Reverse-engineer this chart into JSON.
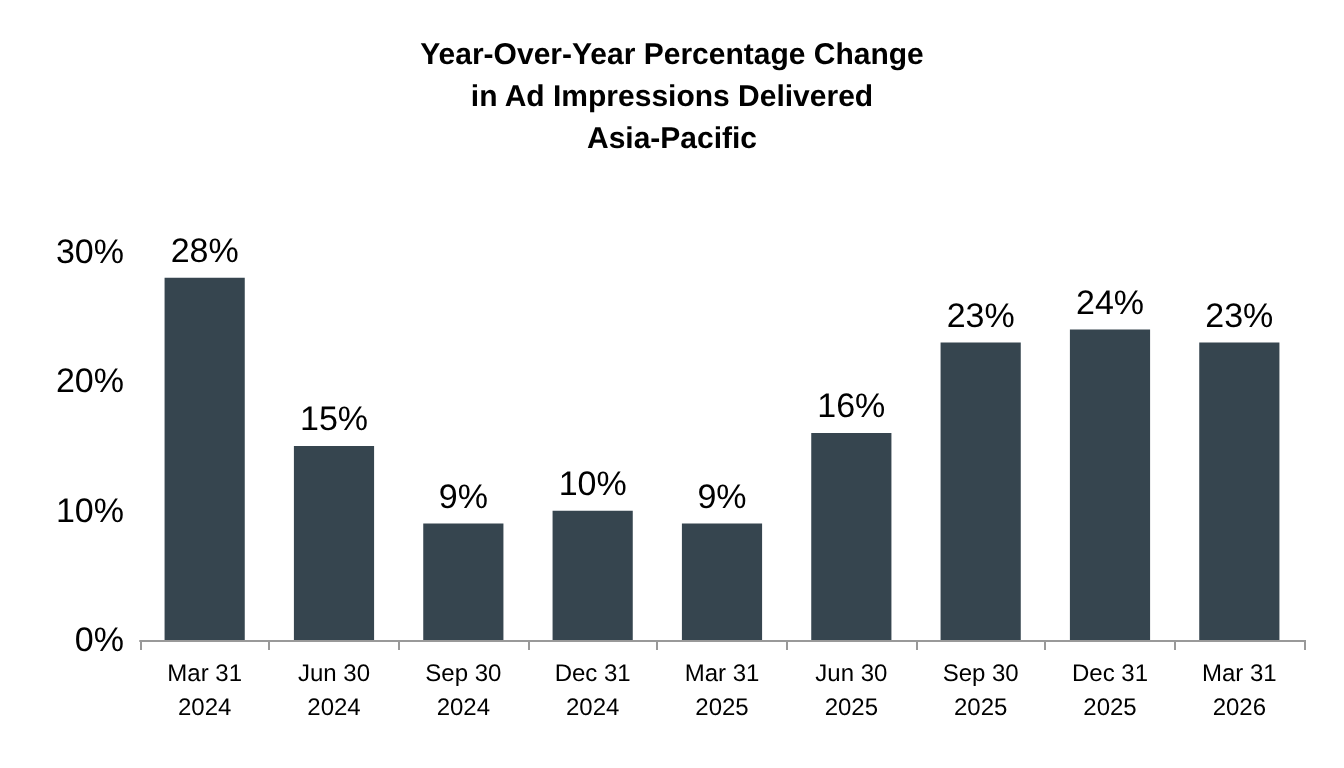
{
  "chart_data": {
    "type": "bar",
    "title": "Year-Over-Year Percentage Change\nin Ad Impressions Delivered\nAsia-Pacific",
    "categories": [
      "Mar 31\n2024",
      "Jun 30\n2024",
      "Sep 30\n2024",
      "Dec 31\n2024",
      "Mar 31\n2025",
      "Jun 30\n2025",
      "Sep 30\n2025",
      "Dec 31\n2025",
      "Mar 31\n2026"
    ],
    "values": [
      28,
      15,
      9,
      10,
      9,
      16,
      23,
      24,
      23
    ],
    "value_labels": [
      "28%",
      "15%",
      "9%",
      "10%",
      "9%",
      "16%",
      "23%",
      "24%",
      "23%"
    ],
    "color": "#36454f",
    "ylim": [
      0,
      30
    ],
    "yticks": [
      {
        "value": 0,
        "label": "0%"
      },
      {
        "value": 10,
        "label": "10%"
      },
      {
        "value": 20,
        "label": "20%"
      },
      {
        "value": 30,
        "label": "30%"
      }
    ],
    "grid": false
  }
}
